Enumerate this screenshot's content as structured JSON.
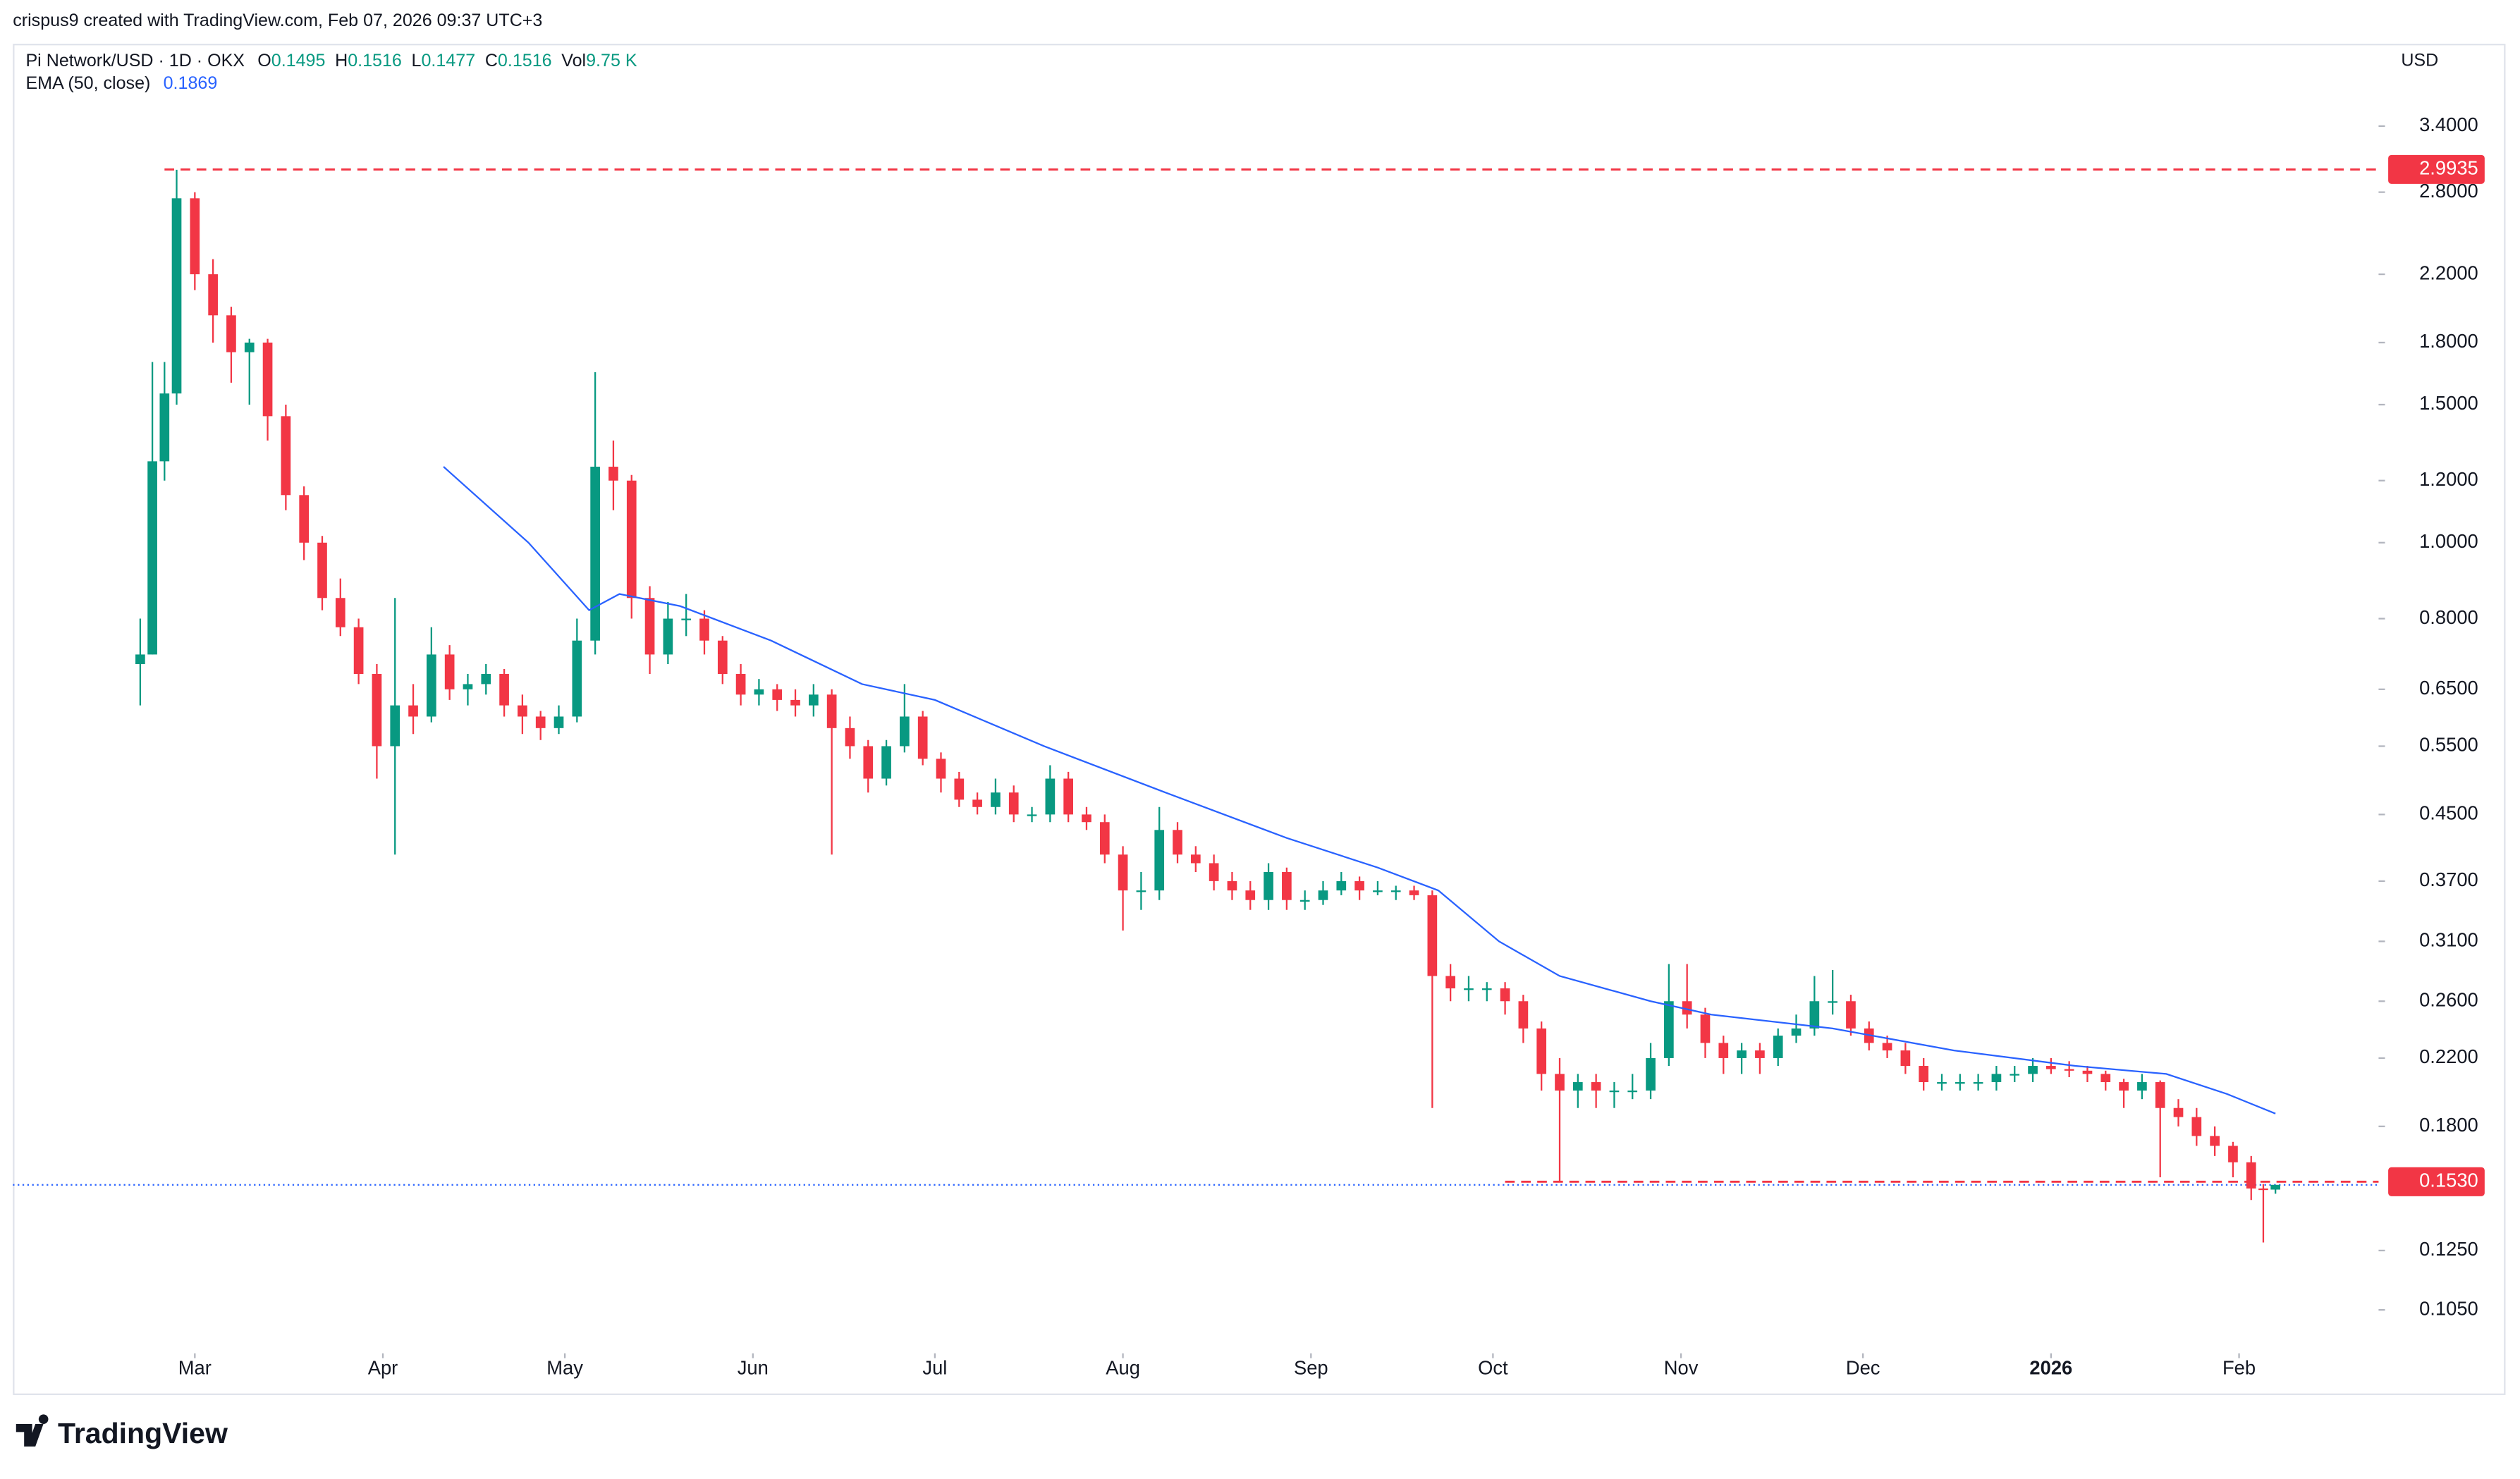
{
  "header": {
    "credit": "crispus9 created with TradingView.com, Feb 07, 2026 09:37 UTC+3",
    "currency": "USD",
    "brand": "TradingView"
  },
  "chart_data": {
    "type": "candlestick",
    "title": "Pi Network/USD · 1D · OKX",
    "legend": {
      "open": "O",
      "high": "H",
      "low": "L",
      "close": "C",
      "volume": "Vol",
      "volume_value": "9.75 K"
    },
    "up_color": "#089981",
    "down_color": "#f23645",
    "last_price_color": "#2962ff",
    "x": [
      -9,
      -7,
      -5,
      -3,
      0,
      3,
      6,
      9,
      12,
      15,
      18,
      21,
      24,
      27,
      30,
      33,
      36,
      39,
      42,
      45,
      48,
      51,
      54,
      57,
      60,
      63,
      66,
      69,
      72,
      75,
      78,
      81,
      84,
      87,
      90,
      93,
      96,
      99,
      102,
      105,
      108,
      111,
      114,
      117,
      120,
      123,
      126,
      129,
      132,
      135,
      138,
      141,
      144,
      147,
      150,
      153,
      156,
      159,
      162,
      165,
      168,
      171,
      174,
      177,
      180,
      183,
      186,
      189,
      192,
      195,
      198,
      201,
      204,
      207,
      210,
      213,
      216,
      219,
      222,
      225,
      228,
      231,
      234,
      237,
      240,
      243,
      246,
      249,
      252,
      255,
      258,
      261,
      264,
      267,
      270,
      273,
      276,
      279,
      282,
      285,
      288,
      291,
      294,
      297,
      300,
      303,
      306,
      309,
      312,
      315,
      318,
      321,
      324,
      327,
      330,
      333,
      336,
      339,
      341,
      343
    ],
    "ohlc": [
      [
        0.7,
        0.8,
        0.62,
        0.72
      ],
      [
        0.72,
        1.7,
        0.72,
        1.27
      ],
      [
        1.27,
        1.7,
        1.2,
        1.55
      ],
      [
        1.55,
        2.99,
        1.5,
        2.75
      ],
      [
        2.75,
        2.8,
        2.1,
        2.2
      ],
      [
        2.2,
        2.3,
        1.8,
        1.95
      ],
      [
        1.95,
        2.0,
        1.6,
        1.75
      ],
      [
        1.75,
        1.82,
        1.5,
        1.8
      ],
      [
        1.8,
        1.82,
        1.35,
        1.45
      ],
      [
        1.45,
        1.5,
        1.1,
        1.15
      ],
      [
        1.15,
        1.18,
        0.95,
        1.0
      ],
      [
        1.0,
        1.02,
        0.82,
        0.85
      ],
      [
        0.85,
        0.9,
        0.76,
        0.78
      ],
      [
        0.78,
        0.8,
        0.66,
        0.68
      ],
      [
        0.68,
        0.7,
        0.5,
        0.55
      ],
      [
        0.55,
        0.85,
        0.4,
        0.62
      ],
      [
        0.62,
        0.66,
        0.57,
        0.6
      ],
      [
        0.6,
        0.78,
        0.59,
        0.72
      ],
      [
        0.72,
        0.74,
        0.63,
        0.65
      ],
      [
        0.65,
        0.68,
        0.62,
        0.66
      ],
      [
        0.66,
        0.7,
        0.64,
        0.68
      ],
      [
        0.68,
        0.69,
        0.6,
        0.62
      ],
      [
        0.62,
        0.64,
        0.57,
        0.6
      ],
      [
        0.6,
        0.61,
        0.56,
        0.58
      ],
      [
        0.58,
        0.62,
        0.57,
        0.6
      ],
      [
        0.6,
        0.8,
        0.59,
        0.75
      ],
      [
        0.75,
        1.65,
        0.72,
        1.25
      ],
      [
        1.25,
        1.35,
        1.1,
        1.2
      ],
      [
        1.2,
        1.22,
        0.8,
        0.85
      ],
      [
        0.85,
        0.88,
        0.68,
        0.72
      ],
      [
        0.72,
        0.84,
        0.7,
        0.8
      ],
      [
        0.8,
        0.86,
        0.76,
        0.8
      ],
      [
        0.8,
        0.82,
        0.72,
        0.75
      ],
      [
        0.75,
        0.76,
        0.66,
        0.68
      ],
      [
        0.68,
        0.7,
        0.62,
        0.64
      ],
      [
        0.64,
        0.67,
        0.62,
        0.65
      ],
      [
        0.65,
        0.66,
        0.61,
        0.63
      ],
      [
        0.63,
        0.65,
        0.6,
        0.62
      ],
      [
        0.62,
        0.66,
        0.6,
        0.64
      ],
      [
        0.64,
        0.65,
        0.4,
        0.58
      ],
      [
        0.58,
        0.6,
        0.53,
        0.55
      ],
      [
        0.55,
        0.56,
        0.48,
        0.5
      ],
      [
        0.5,
        0.56,
        0.49,
        0.55
      ],
      [
        0.55,
        0.66,
        0.54,
        0.6
      ],
      [
        0.6,
        0.61,
        0.52,
        0.53
      ],
      [
        0.53,
        0.54,
        0.48,
        0.5
      ],
      [
        0.5,
        0.51,
        0.46,
        0.47
      ],
      [
        0.47,
        0.48,
        0.45,
        0.46
      ],
      [
        0.46,
        0.5,
        0.45,
        0.48
      ],
      [
        0.48,
        0.49,
        0.44,
        0.45
      ],
      [
        0.45,
        0.46,
        0.44,
        0.45
      ],
      [
        0.45,
        0.52,
        0.44,
        0.5
      ],
      [
        0.5,
        0.51,
        0.44,
        0.45
      ],
      [
        0.45,
        0.46,
        0.43,
        0.44
      ],
      [
        0.44,
        0.45,
        0.39,
        0.4
      ],
      [
        0.4,
        0.41,
        0.32,
        0.36
      ],
      [
        0.36,
        0.38,
        0.34,
        0.36
      ],
      [
        0.36,
        0.46,
        0.35,
        0.43
      ],
      [
        0.43,
        0.44,
        0.39,
        0.4
      ],
      [
        0.4,
        0.41,
        0.38,
        0.39
      ],
      [
        0.39,
        0.4,
        0.36,
        0.37
      ],
      [
        0.37,
        0.38,
        0.35,
        0.36
      ],
      [
        0.36,
        0.37,
        0.34,
        0.35
      ],
      [
        0.35,
        0.39,
        0.34,
        0.38
      ],
      [
        0.38,
        0.385,
        0.34,
        0.35
      ],
      [
        0.35,
        0.36,
        0.34,
        0.35
      ],
      [
        0.35,
        0.37,
        0.345,
        0.36
      ],
      [
        0.36,
        0.38,
        0.355,
        0.37
      ],
      [
        0.37,
        0.375,
        0.35,
        0.36
      ],
      [
        0.36,
        0.37,
        0.355,
        0.36
      ],
      [
        0.36,
        0.365,
        0.35,
        0.36
      ],
      [
        0.36,
        0.365,
        0.35,
        0.355
      ],
      [
        0.355,
        0.36,
        0.19,
        0.28
      ],
      [
        0.28,
        0.29,
        0.26,
        0.27
      ],
      [
        0.27,
        0.28,
        0.26,
        0.27
      ],
      [
        0.27,
        0.275,
        0.26,
        0.27
      ],
      [
        0.27,
        0.275,
        0.25,
        0.26
      ],
      [
        0.26,
        0.265,
        0.23,
        0.24
      ],
      [
        0.24,
        0.245,
        0.2,
        0.21
      ],
      [
        0.21,
        0.22,
        0.153,
        0.2
      ],
      [
        0.2,
        0.21,
        0.19,
        0.205
      ],
      [
        0.205,
        0.21,
        0.19,
        0.2
      ],
      [
        0.2,
        0.205,
        0.19,
        0.2
      ],
      [
        0.2,
        0.21,
        0.195,
        0.2
      ],
      [
        0.2,
        0.23,
        0.195,
        0.22
      ],
      [
        0.22,
        0.29,
        0.215,
        0.26
      ],
      [
        0.26,
        0.29,
        0.24,
        0.25
      ],
      [
        0.25,
        0.255,
        0.22,
        0.23
      ],
      [
        0.23,
        0.235,
        0.21,
        0.22
      ],
      [
        0.22,
        0.23,
        0.21,
        0.225
      ],
      [
        0.225,
        0.23,
        0.21,
        0.22
      ],
      [
        0.22,
        0.24,
        0.215,
        0.235
      ],
      [
        0.235,
        0.25,
        0.23,
        0.24
      ],
      [
        0.24,
        0.28,
        0.235,
        0.26
      ],
      [
        0.26,
        0.285,
        0.25,
        0.26
      ],
      [
        0.26,
        0.265,
        0.235,
        0.24
      ],
      [
        0.24,
        0.245,
        0.225,
        0.23
      ],
      [
        0.23,
        0.235,
        0.22,
        0.225
      ],
      [
        0.225,
        0.23,
        0.21,
        0.215
      ],
      [
        0.215,
        0.22,
        0.2,
        0.205
      ],
      [
        0.205,
        0.21,
        0.2,
        0.205
      ],
      [
        0.205,
        0.21,
        0.2,
        0.205
      ],
      [
        0.205,
        0.21,
        0.2,
        0.205
      ],
      [
        0.205,
        0.215,
        0.2,
        0.21
      ],
      [
        0.21,
        0.215,
        0.205,
        0.21
      ],
      [
        0.21,
        0.22,
        0.205,
        0.215
      ],
      [
        0.215,
        0.22,
        0.21,
        0.213
      ],
      [
        0.213,
        0.218,
        0.208,
        0.212
      ],
      [
        0.212,
        0.215,
        0.205,
        0.21
      ],
      [
        0.21,
        0.212,
        0.2,
        0.205
      ],
      [
        0.205,
        0.207,
        0.19,
        0.2
      ],
      [
        0.2,
        0.21,
        0.195,
        0.205
      ],
      [
        0.205,
        0.206,
        0.155,
        0.19
      ],
      [
        0.19,
        0.195,
        0.18,
        0.185
      ],
      [
        0.185,
        0.19,
        0.17,
        0.175
      ],
      [
        0.175,
        0.18,
        0.165,
        0.17
      ],
      [
        0.17,
        0.172,
        0.155,
        0.162
      ],
      [
        0.162,
        0.165,
        0.145,
        0.15
      ],
      [
        0.15,
        0.152,
        0.128,
        0.1495
      ],
      [
        0.1495,
        0.1516,
        0.1477,
        0.1516
      ]
    ],
    "ema": {
      "name": "EMA (50, close)",
      "color": "#2962ff",
      "x": [
        41,
        55,
        65,
        70,
        80,
        95,
        110,
        122,
        140,
        160,
        180,
        195,
        205,
        215,
        225,
        240,
        250,
        270,
        290,
        310,
        325,
        335,
        343
      ],
      "values": [
        1.25,
        1.0,
        0.82,
        0.86,
        0.83,
        0.75,
        0.66,
        0.63,
        0.55,
        0.48,
        0.42,
        0.385,
        0.36,
        0.31,
        0.28,
        0.26,
        0.25,
        0.24,
        0.225,
        0.215,
        0.21,
        0.198,
        0.1869
      ]
    },
    "levels": [
      {
        "value": 2.9935,
        "from": -5
      },
      {
        "value": {
          "value": 0.153,
          "label": "0.1530"
        },
        "from": 216
      }
    ],
    "level_color": "#f23645",
    "xlim": [
      -30,
      360
    ],
    "xticks": [
      {
        "value": 0,
        "label": "Mar"
      },
      {
        "value": 31,
        "label": "Apr"
      },
      {
        "value": 61,
        "label": "May"
      },
      {
        "value": 92,
        "label": "Jun"
      },
      {
        "value": 122,
        "label": "Jul"
      },
      {
        "value": 153,
        "label": "Aug"
      },
      {
        "value": 184,
        "label": "Sep"
      },
      {
        "value": 214,
        "label": "Oct"
      },
      {
        "value": 245,
        "label": "Nov"
      },
      {
        "value": 275,
        "label": "Dec"
      },
      {
        "value": 306,
        "label": "2026"
      },
      {
        "value": 337,
        "label": "Feb"
      }
    ],
    "ylim": [
      0.0933,
      4.31
    ],
    "log_y": true,
    "yticks": [
      {
        "value": 3.4,
        "label": "3.4000"
      },
      {
        "value": 2.8,
        "label": "2.8000"
      },
      {
        "value": 2.2,
        "label": "2.2000"
      },
      {
        "value": 1.8,
        "label": "1.8000"
      },
      {
        "value": 1.5,
        "label": "1.5000"
      },
      {
        "value": 1.2,
        "label": "1.2000"
      },
      {
        "value": 1.0,
        "label": "1.0000"
      },
      {
        "value": 0.8,
        "label": "0.8000"
      },
      {
        "value": 0.65,
        "label": "0.6500"
      },
      {
        "value": 0.55,
        "label": "0.5500"
      },
      {
        "value": 0.45,
        "label": "0.4500"
      },
      {
        "value": 0.37,
        "label": "0.3700"
      },
      {
        "value": 0.31,
        "label": "0.3100"
      },
      {
        "value": 0.26,
        "label": "0.2600"
      },
      {
        "value": 0.22,
        "label": "0.2200"
      },
      {
        "value": 0.18,
        "label": "0.1800"
      },
      {
        "value": 0.125,
        "label": "0.1250"
      },
      {
        "value": 0.105,
        "label": "0.1050"
      }
    ]
  }
}
